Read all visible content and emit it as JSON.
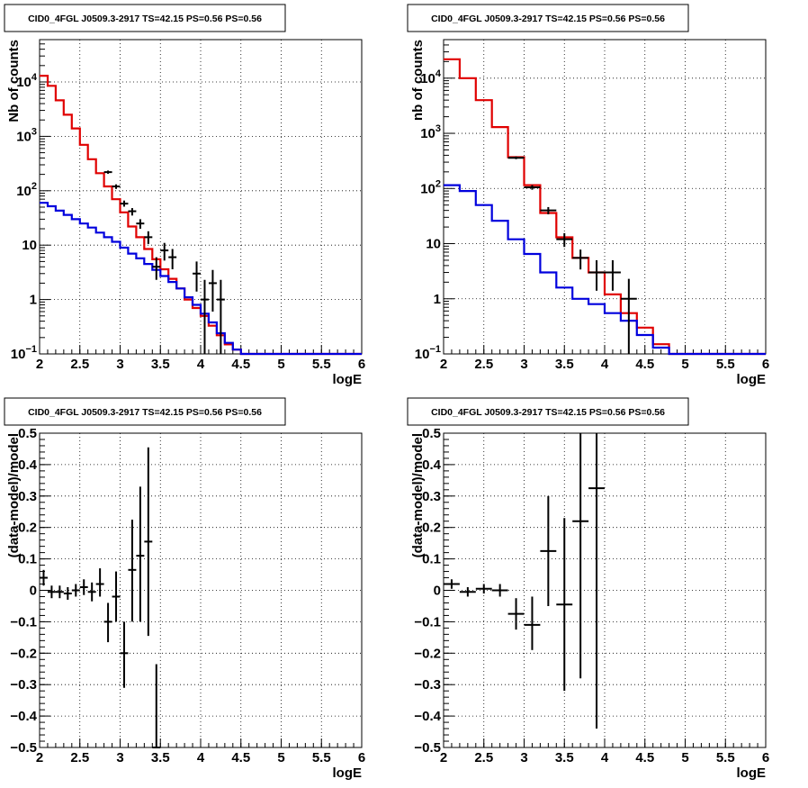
{
  "chart_data": [
    {
      "id": "top-left",
      "type": "step-histogram",
      "title": "CID0_4FGL J0509.3-2917 TS=42.15 PS=0.56 PS=0.56",
      "xlabel": "logE",
      "ylabel": "Nb of counts",
      "xlim": [
        2,
        6
      ],
      "ylim": [
        0.1,
        60000
      ],
      "yscale": "log",
      "grid": true,
      "x_ticks": [
        "2",
        "2.5",
        "3",
        "3.5",
        "4",
        "4.5",
        "5",
        "5.5",
        "6"
      ],
      "y_ticks": [
        {
          "value": 0.1,
          "base": "10",
          "exp": "−1"
        },
        {
          "value": 1,
          "text": "1"
        },
        {
          "value": 10,
          "text": "10"
        },
        {
          "value": 100,
          "base": "10",
          "exp": "2"
        },
        {
          "value": 1000,
          "base": "10",
          "exp": "3"
        },
        {
          "value": 10000,
          "base": "10",
          "exp": "4"
        }
      ],
      "bin_edges": [
        2.0,
        2.1,
        2.2,
        2.3,
        2.4,
        2.5,
        2.6,
        2.7,
        2.8,
        2.9,
        3.0,
        3.1,
        3.2,
        3.3,
        3.4,
        3.5,
        3.6,
        3.7,
        3.8,
        3.9,
        4.0,
        4.1,
        4.2,
        4.3,
        4.4,
        4.5,
        4.6,
        6.0
      ],
      "series": [
        {
          "color": "#e00000",
          "values": [
            13000,
            8500,
            4600,
            2500,
            1400,
            700,
            380,
            210,
            120,
            70,
            40,
            22,
            14,
            8.5,
            5.5,
            3.6,
            2.4,
            1.6,
            1.0,
            0.7,
            0.5,
            0.33,
            0.22,
            0.15,
            0.12,
            0.1,
            0.1
          ]
        },
        {
          "color": "#0000dd",
          "values": [
            60,
            52,
            43,
            36,
            30,
            25,
            21,
            17,
            14,
            11.5,
            9,
            7,
            5.7,
            4.5,
            3.5,
            2.7,
            2.1,
            1.6,
            1.1,
            0.8,
            0.55,
            0.38,
            0.24,
            0.16,
            0.12,
            0.1,
            0.1
          ]
        }
      ],
      "data_points": [
        {
          "x": 2.85,
          "y": 220,
          "ylo": 205,
          "yhi": 235
        },
        {
          "x": 2.95,
          "y": 120,
          "ylo": 108,
          "yhi": 131
        },
        {
          "x": 3.05,
          "y": 58,
          "ylo": 51,
          "yhi": 66
        },
        {
          "x": 3.15,
          "y": 42,
          "ylo": 35,
          "yhi": 48
        },
        {
          "x": 3.25,
          "y": 25,
          "ylo": 20,
          "yhi": 30
        },
        {
          "x": 3.35,
          "y": 14,
          "ylo": 10.5,
          "yhi": 18
        },
        {
          "x": 3.45,
          "y": 4,
          "ylo": 2.3,
          "yhi": 6
        },
        {
          "x": 3.55,
          "y": 8,
          "ylo": 5.2,
          "yhi": 11
        },
        {
          "x": 3.65,
          "y": 6,
          "ylo": 3.6,
          "yhi": 8.5
        },
        {
          "x": 3.95,
          "y": 3,
          "ylo": 1.4,
          "yhi": 5
        },
        {
          "x": 4.05,
          "y": 1,
          "ylo": 0.1,
          "yhi": 2.3
        },
        {
          "x": 4.15,
          "y": 2,
          "ylo": 0.6,
          "yhi": 3.5
        },
        {
          "x": 4.25,
          "y": 1,
          "ylo": 0.1,
          "yhi": 2.3
        }
      ]
    },
    {
      "id": "top-right",
      "type": "step-histogram",
      "title": "CID0_4FGL J0509.3-2917 TS=42.15 PS=0.56 PS=0.56",
      "xlabel": "logE",
      "ylabel": "nb of counts",
      "xlim": [
        2,
        6
      ],
      "ylim": [
        0.1,
        50000
      ],
      "yscale": "log",
      "grid": true,
      "x_ticks": [
        "2",
        "2.5",
        "3",
        "3.5",
        "4",
        "4.5",
        "5",
        "5.5",
        "6"
      ],
      "y_ticks": [
        {
          "value": 0.1,
          "base": "10",
          "exp": "−1"
        },
        {
          "value": 1,
          "text": "1"
        },
        {
          "value": 10,
          "text": "10"
        },
        {
          "value": 100,
          "base": "10",
          "exp": "2"
        },
        {
          "value": 1000,
          "base": "10",
          "exp": "3"
        },
        {
          "value": 10000,
          "base": "10",
          "exp": "4"
        }
      ],
      "bin_edges": [
        2.0,
        2.2,
        2.4,
        2.6,
        2.8,
        3.0,
        3.2,
        3.4,
        3.6,
        3.8,
        4.0,
        4.2,
        4.4,
        4.6,
        4.8,
        6.0
      ],
      "series": [
        {
          "color": "#e00000",
          "values": [
            22000,
            10000,
            4000,
            1300,
            370,
            115,
            36,
            13,
            5.5,
            3,
            1.2,
            0.55,
            0.3,
            0.15,
            0.1
          ]
        },
        {
          "color": "#0000dd",
          "values": [
            115,
            90,
            50,
            26,
            12,
            6.5,
            3,
            1.6,
            1.0,
            0.8,
            0.55,
            0.4,
            0.22,
            0.13,
            0.1
          ]
        }
      ],
      "data_points": [
        {
          "x": 2.9,
          "y": 360,
          "ylo": 340,
          "yhi": 380
        },
        {
          "x": 3.1,
          "y": 105,
          "ylo": 95,
          "yhi": 115
        },
        {
          "x": 3.3,
          "y": 40,
          "ylo": 34,
          "yhi": 46
        },
        {
          "x": 3.5,
          "y": 12,
          "ylo": 8.7,
          "yhi": 15.5
        },
        {
          "x": 3.7,
          "y": 5.5,
          "ylo": 3.4,
          "yhi": 7.8
        },
        {
          "x": 3.9,
          "y": 3,
          "ylo": 1.4,
          "yhi": 5
        },
        {
          "x": 4.1,
          "y": 3,
          "ylo": 1.4,
          "yhi": 5
        },
        {
          "x": 4.3,
          "y": 1,
          "ylo": 0.1,
          "yhi": 2.3
        }
      ]
    },
    {
      "id": "bottom-left",
      "type": "scatter-errorbars",
      "title": "CID0_4FGL J0509.3-2917 TS=42.15 PS=0.56 PS=0.56",
      "xlabel": "logE",
      "ylabel": "(data-model)/model",
      "xlim": [
        2,
        6
      ],
      "ylim": [
        -0.5,
        0.5
      ],
      "yscale": "linear",
      "grid": true,
      "x_ticks": [
        "2",
        "2.5",
        "3",
        "3.5",
        "4",
        "4.5",
        "5",
        "5.5",
        "6"
      ],
      "y_ticks_values": [
        -0.5,
        -0.4,
        -0.3,
        -0.2,
        -0.1,
        0,
        0.1,
        0.2,
        0.3,
        0.4,
        0.5
      ],
      "y_ticks_labels": [
        "−0.5",
        "−0.4",
        "−0.3",
        "−0.2",
        "−0.1",
        "0",
        "0.1",
        "0.2",
        "0.3",
        "0.4",
        "0.5"
      ],
      "data_points": [
        {
          "x": 2.05,
          "y": 0.04,
          "ylo": 0.015,
          "yhi": 0.065
        },
        {
          "x": 2.15,
          "y": -0.005,
          "ylo": -0.025,
          "yhi": 0.015
        },
        {
          "x": 2.25,
          "y": -0.005,
          "ylo": -0.025,
          "yhi": 0.015
        },
        {
          "x": 2.35,
          "y": -0.01,
          "ylo": -0.03,
          "yhi": 0.01
        },
        {
          "x": 2.45,
          "y": 0.0,
          "ylo": -0.02,
          "yhi": 0.02
        },
        {
          "x": 2.55,
          "y": 0.01,
          "ylo": -0.015,
          "yhi": 0.035
        },
        {
          "x": 2.65,
          "y": -0.005,
          "ylo": -0.035,
          "yhi": 0.025
        },
        {
          "x": 2.75,
          "y": 0.02,
          "ylo": -0.02,
          "yhi": 0.07
        },
        {
          "x": 2.85,
          "y": -0.1,
          "ylo": -0.165,
          "yhi": -0.04
        },
        {
          "x": 2.95,
          "y": -0.02,
          "ylo": -0.1,
          "yhi": 0.06
        },
        {
          "x": 3.05,
          "y": -0.2,
          "ylo": -0.31,
          "yhi": -0.1
        },
        {
          "x": 3.15,
          "y": 0.065,
          "ylo": -0.1,
          "yhi": 0.225
        },
        {
          "x": 3.25,
          "y": 0.11,
          "ylo": -0.1,
          "yhi": 0.33
        },
        {
          "x": 3.35,
          "y": 0.155,
          "ylo": -0.145,
          "yhi": 0.455
        },
        {
          "x": 3.45,
          "y": -0.5,
          "ylo": -0.5,
          "yhi": -0.235
        }
      ]
    },
    {
      "id": "bottom-right",
      "type": "scatter-errorbars",
      "title": "CID0_4FGL J0509.3-2917 TS=42.15 PS=0.56 PS=0.56",
      "xlabel": "logE",
      "ylabel": "(data-model)/model",
      "xlim": [
        2,
        6
      ],
      "ylim": [
        -0.5,
        0.5
      ],
      "yscale": "linear",
      "grid": true,
      "x_ticks": [
        "2",
        "2.5",
        "3",
        "3.5",
        "4",
        "4.5",
        "5",
        "5.5",
        "6"
      ],
      "y_ticks_values": [
        -0.5,
        -0.4,
        -0.3,
        -0.2,
        -0.1,
        0,
        0.1,
        0.2,
        0.3,
        0.4,
        0.5
      ],
      "y_ticks_labels": [
        "−0.5",
        "−0.4",
        "−0.3",
        "−0.2",
        "−0.1",
        "0",
        "0.1",
        "0.2",
        "0.3",
        "0.4",
        "0.5"
      ],
      "data_points": [
        {
          "x": 2.1,
          "y": 0.02,
          "ylo": 0.005,
          "yhi": 0.035
        },
        {
          "x": 2.3,
          "y": -0.005,
          "ylo": -0.02,
          "yhi": 0.01
        },
        {
          "x": 2.5,
          "y": 0.005,
          "ylo": -0.01,
          "yhi": 0.02
        },
        {
          "x": 2.7,
          "y": 0.0,
          "ylo": -0.02,
          "yhi": 0.02
        },
        {
          "x": 2.9,
          "y": -0.075,
          "ylo": -0.125,
          "yhi": -0.025
        },
        {
          "x": 3.1,
          "y": -0.11,
          "ylo": -0.19,
          "yhi": -0.02
        },
        {
          "x": 3.3,
          "y": 0.125,
          "ylo": -0.05,
          "yhi": 0.3
        },
        {
          "x": 3.5,
          "y": -0.045,
          "ylo": -0.32,
          "yhi": 0.23
        },
        {
          "x": 3.7,
          "y": 0.22,
          "ylo": -0.28,
          "yhi": 0.5
        },
        {
          "x": 3.9,
          "y": 0.325,
          "ylo": -0.44,
          "yhi": 0.5
        }
      ]
    }
  ]
}
